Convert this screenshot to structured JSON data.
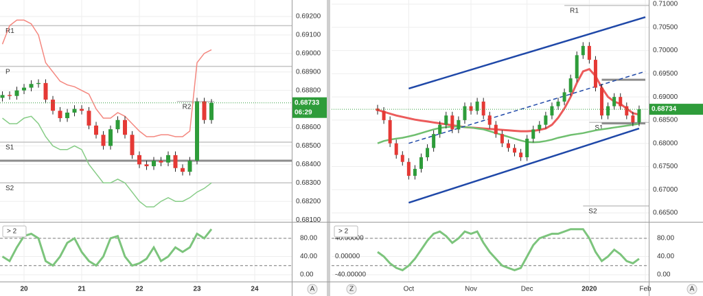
{
  "chart_data": [
    {
      "type": "candlestick",
      "x": [
        19.625,
        19.75,
        19.875,
        20,
        20.125,
        20.25,
        20.375,
        20.5,
        20.625,
        20.75,
        20.875,
        21,
        21.125,
        21.25,
        21.375,
        21.5,
        21.625,
        21.75,
        21.875,
        22,
        22.125,
        22.25,
        22.375,
        22.5,
        22.625,
        22.75,
        22.875,
        23,
        23.125,
        23.25
      ],
      "xlim": [
        19.583,
        24.643
      ],
      "xticks": [
        20,
        21,
        22,
        23,
        24
      ],
      "open": [
        0.6876,
        0.68775,
        0.6877,
        0.688,
        0.68815,
        0.68835,
        0.6884,
        0.6875,
        0.6869,
        0.6865,
        0.6868,
        0.687,
        0.6869,
        0.6861,
        0.6856,
        0.685,
        0.6859,
        0.6864,
        0.6856,
        0.6845,
        0.684,
        0.6839,
        0.6842,
        0.6841,
        0.6845,
        0.6838,
        0.6836,
        0.6842,
        0.6874,
        0.6864
      ],
      "high": [
        0.68795,
        0.68795,
        0.6882,
        0.68835,
        0.68855,
        0.6886,
        0.6886,
        0.6877,
        0.6871,
        0.687,
        0.6872,
        0.6872,
        0.6871,
        0.6863,
        0.6858,
        0.6861,
        0.6866,
        0.6866,
        0.6858,
        0.6847,
        0.6842,
        0.6844,
        0.6844,
        0.6847,
        0.6847,
        0.684,
        0.6844,
        0.6876,
        0.6876,
        0.68753
      ],
      "low": [
        0.6874,
        0.6875,
        0.6875,
        0.6878,
        0.68795,
        0.68815,
        0.6873,
        0.6867,
        0.6863,
        0.6863,
        0.6866,
        0.6867,
        0.6859,
        0.6854,
        0.6848,
        0.6848,
        0.6857,
        0.6854,
        0.6843,
        0.6838,
        0.6837,
        0.6837,
        0.6839,
        0.6839,
        0.6836,
        0.6834,
        0.6834,
        0.684,
        0.6862,
        0.6862
      ],
      "close": [
        0.68775,
        0.6877,
        0.688,
        0.68815,
        0.68835,
        0.6884,
        0.6875,
        0.6869,
        0.6865,
        0.6868,
        0.687,
        0.6869,
        0.6861,
        0.6856,
        0.685,
        0.6859,
        0.6864,
        0.6856,
        0.6845,
        0.684,
        0.6839,
        0.6842,
        0.6841,
        0.6845,
        0.6838,
        0.6836,
        0.6842,
        0.6874,
        0.6864,
        0.68733
      ],
      "up_color": "#2e9c3a",
      "down_color": "#e53935",
      "ylim": [
        0.68093,
        0.69289
      ],
      "yticks": [
        {
          "value": 0.681,
          "label": "0.68100"
        },
        {
          "value": 0.682,
          "label": "0.68200"
        },
        {
          "value": 0.683,
          "label": "0.68300"
        },
        {
          "value": 0.684,
          "label": "0.68400"
        },
        {
          "value": 0.685,
          "label": "0.68500"
        },
        {
          "value": 0.686,
          "label": "0.68600"
        },
        {
          "value": 0.687,
          "label": "0.68700"
        },
        {
          "value": 0.688,
          "label": "0.68800"
        },
        {
          "value": 0.689,
          "label": "0.68900"
        },
        {
          "value": 0.69,
          "label": "0.69000"
        },
        {
          "value": 0.691,
          "label": "0.69100"
        },
        {
          "value": 0.692,
          "label": "0.69200"
        }
      ],
      "lines": [
        {
          "color": "#f4877f",
          "values": [
            0.6905,
            0.6915,
            0.6918,
            0.6918,
            0.6916,
            0.691,
            0.6895,
            0.689,
            0.6885,
            0.6883,
            0.6882,
            0.688,
            0.6878,
            0.687,
            0.6865,
            0.6865,
            0.6868,
            0.6866,
            0.6862,
            0.6858,
            0.6855,
            0.6855,
            0.6856,
            0.6856,
            0.6855,
            0.6855,
            0.6858,
            0.6895,
            0.69,
            0.6902
          ]
        },
        {
          "color": "#86cc86",
          "values": [
            0.6865,
            0.6862,
            0.6862,
            0.6865,
            0.6866,
            0.6862,
            0.6855,
            0.685,
            0.6848,
            0.6848,
            0.685,
            0.6848,
            0.684,
            0.6835,
            0.683,
            0.683,
            0.6832,
            0.683,
            0.6825,
            0.682,
            0.6817,
            0.6817,
            0.682,
            0.6822,
            0.682,
            0.682,
            0.6822,
            0.6825,
            0.6827,
            0.683
          ]
        }
      ],
      "levels": [
        {
          "value": 0.6915,
          "x": [
            19.583,
            24.643
          ],
          "label": "R1"
        },
        {
          "value": 0.6893,
          "x": [
            19.583,
            24.643
          ],
          "label": "P"
        },
        {
          "value": 0.6852,
          "x": [
            19.583,
            24.643
          ],
          "label": "S1"
        },
        {
          "value": 0.683,
          "x": [
            19.583,
            24.643
          ],
          "label": "S2"
        },
        {
          "value": 0.6874,
          "x": [
            22.65,
            23.3
          ],
          "label": "R2"
        },
        {
          "value": 0.6842,
          "x": [
            19.583,
            24.643
          ],
          "thick": true
        }
      ],
      "price_label": {
        "value": 0.68733,
        "label": "0.68733"
      },
      "countdown": "06:29",
      "price_color": "#2e9c3a",
      "indicator_label": "> 2",
      "oscillator": {
        "ylim": [
          -15.1,
          113.2
        ],
        "yticks": [
          {
            "value": 80,
            "label": "80.00"
          },
          {
            "value": 40,
            "label": "40.00"
          },
          {
            "value": 0,
            "label": "0.00"
          }
        ],
        "levels": [
          80,
          20
        ],
        "series": [
          {
            "color": "#7cc47c",
            "values": [
              40,
              30,
              60,
              85,
              90,
              80,
              30,
              20,
              40,
              70,
              80,
              50,
              30,
              20,
              40,
              80,
              85,
              40,
              20,
              25,
              35,
              60,
              30,
              40,
              60,
              50,
              60,
              90,
              80,
              100
            ]
          }
        ]
      }
    },
    {
      "type": "candlestick",
      "categories": [
        null,
        null,
        null,
        null,
        null,
        "Oct",
        null,
        null,
        null,
        null,
        null,
        null,
        null,
        null,
        null,
        "Nov",
        null,
        null,
        null,
        null,
        null,
        null,
        null,
        null,
        "Dec",
        null,
        null,
        null,
        null,
        null,
        null,
        null,
        null,
        null,
        "2020",
        null,
        null,
        null,
        null,
        null,
        null,
        null,
        null,
        "Feb"
      ],
      "open": [
        0.6875,
        0.687,
        0.685,
        0.68,
        0.6775,
        0.676,
        0.673,
        0.6745,
        0.677,
        0.679,
        0.682,
        0.684,
        0.686,
        0.683,
        0.685,
        0.688,
        0.687,
        0.689,
        0.686,
        0.684,
        0.682,
        0.68,
        0.679,
        0.678,
        0.677,
        0.681,
        0.683,
        0.684,
        0.686,
        0.688,
        0.689,
        0.691,
        0.694,
        0.699,
        0.701,
        0.698,
        0.692,
        0.686,
        0.688,
        0.69,
        0.688,
        0.686,
        0.6845,
        null
      ],
      "high": [
        0.6883,
        0.6878,
        0.6858,
        0.6808,
        0.6783,
        0.6768,
        0.6753,
        0.6778,
        0.6798,
        0.6828,
        0.6848,
        0.6868,
        0.6868,
        0.6858,
        0.6888,
        0.6888,
        0.6898,
        0.6898,
        0.6868,
        0.6848,
        0.6828,
        0.6808,
        0.6798,
        0.6788,
        0.6818,
        0.6838,
        0.6848,
        0.6868,
        0.6888,
        0.6898,
        0.6918,
        0.6948,
        0.6998,
        0.7018,
        0.7018,
        0.6988,
        0.6928,
        0.6888,
        0.6908,
        0.6908,
        0.6888,
        0.6868,
        0.68814,
        null
      ],
      "low": [
        0.6862,
        0.6842,
        0.6792,
        0.6767,
        0.6752,
        0.6722,
        0.6722,
        0.6737,
        0.6762,
        0.6782,
        0.6812,
        0.6832,
        0.6822,
        0.6822,
        0.6842,
        0.6862,
        0.6862,
        0.6852,
        0.6832,
        0.6812,
        0.6792,
        0.6782,
        0.6772,
        0.6762,
        0.6762,
        0.6802,
        0.6822,
        0.6832,
        0.6852,
        0.6872,
        0.6882,
        0.6902,
        0.6932,
        0.6982,
        0.6972,
        0.6912,
        0.6852,
        0.6852,
        0.6872,
        0.6872,
        0.6852,
        0.6837,
        0.6837,
        null
      ],
      "close": [
        0.687,
        0.685,
        0.68,
        0.6775,
        0.676,
        0.673,
        0.6745,
        0.677,
        0.679,
        0.682,
        0.684,
        0.686,
        0.683,
        0.685,
        0.688,
        0.687,
        0.689,
        0.686,
        0.684,
        0.682,
        0.68,
        0.679,
        0.678,
        0.677,
        0.681,
        0.683,
        0.684,
        0.686,
        0.688,
        0.689,
        0.691,
        0.694,
        0.699,
        0.701,
        0.698,
        0.692,
        0.686,
        0.688,
        0.69,
        0.688,
        0.686,
        0.6845,
        0.68734,
        null
      ],
      "up_color": "#2e9c3a",
      "down_color": "#e53935",
      "ylim": [
        0.66323,
        0.71089
      ],
      "yticks": [
        {
          "value": 0.665,
          "label": "0.66500"
        },
        {
          "value": 0.67,
          "label": "0.67000"
        },
        {
          "value": 0.675,
          "label": "0.67500"
        },
        {
          "value": 0.68,
          "label": "0.68000"
        },
        {
          "value": 0.685,
          "label": "0.68500"
        },
        {
          "value": 0.69,
          "label": "0.69000"
        },
        {
          "value": 0.695,
          "label": "0.69500"
        },
        {
          "value": 0.7,
          "label": "0.70000"
        },
        {
          "value": 0.705,
          "label": "0.70500"
        },
        {
          "value": 0.71,
          "label": "0.71000"
        }
      ],
      "lines": [
        {
          "color": "#ec5b5b",
          "width": 3,
          "values": [
            0.6872,
            0.6868,
            0.6864,
            0.686,
            0.6857,
            0.6854,
            0.6851,
            0.6849,
            0.6847,
            0.6845,
            0.6843,
            0.6841,
            0.6839,
            0.6837,
            0.6835,
            0.6834,
            0.6833,
            0.6832,
            0.6831,
            0.683,
            0.6829,
            0.6828,
            0.6827,
            0.6826,
            0.6826,
            0.6827,
            0.6829,
            0.6832,
            0.684,
            0.6855,
            0.6875,
            0.69,
            0.693,
            0.6955,
            0.696,
            0.6945,
            0.692,
            0.69,
            0.689,
            0.6885,
            0.6875,
            0.6865,
            0.6862,
            null
          ]
        },
        {
          "color": "#6fbf6f",
          "width": 2.5,
          "values": [
            0.68,
            0.6805,
            0.6808,
            0.681,
            0.6812,
            0.6815,
            0.6818,
            0.6822,
            0.6826,
            0.683,
            0.6833,
            0.6835,
            0.6836,
            0.6836,
            0.6835,
            0.6834,
            0.6832,
            0.683,
            0.6826,
            0.6822,
            0.6818,
            0.6814,
            0.681,
            0.6806,
            0.6803,
            0.6802,
            0.6803,
            0.6805,
            0.6808,
            0.6812,
            0.6815,
            0.6818,
            0.682,
            0.6822,
            0.6825,
            0.6828,
            0.683,
            0.6832,
            0.6834,
            0.6836,
            0.6838,
            0.684,
            0.6842,
            null
          ]
        }
      ],
      "levels": [
        {
          "value": 0.7097,
          "x": [
            30,
            44
          ],
          "label": "R1"
        },
        {
          "value": 0.6845,
          "x": [
            34,
            44
          ],
          "label": "S1"
        },
        {
          "value": 0.6665,
          "x": [
            33,
            44
          ],
          "label": "S2"
        },
        {
          "value": 0.6937,
          "x": [
            36,
            43
          ],
          "thick": true
        },
        {
          "value": 0.6843,
          "x": [
            36,
            43
          ],
          "thick": true
        }
      ],
      "trendlines": [
        {
          "color": "#1f48a8",
          "x": [
            5,
            43
          ],
          "y": [
            0.6918,
            0.7072
          ]
        },
        {
          "color": "#1f48a8",
          "x": [
            5,
            42
          ],
          "y": [
            0.6672,
            0.6832
          ]
        },
        {
          "color": "#1f48a8",
          "dashed": true,
          "x": [
            5,
            43
          ],
          "y": [
            0.68,
            0.6955
          ]
        }
      ],
      "price_label": {
        "value": 0.68734,
        "label": "0.68734"
      },
      "price_color": "#2e9c3a",
      "indicator_label": "> 2",
      "oscillator": {
        "ylim": [
          -15.1,
          113.2
        ],
        "yticks": [
          {
            "value": 80,
            "label": "80.00"
          },
          {
            "value": 40,
            "label": "40.00"
          },
          {
            "value": 0,
            "label": "0.00"
          }
        ],
        "y2lim": [
          -55.1,
          73.2
        ],
        "y2ticks": [
          {
            "value": 40,
            "label": "40.00000"
          },
          {
            "value": 0,
            "label": "0.00000"
          },
          {
            "value": -40,
            "label": "-40.00000"
          }
        ],
        "levels": [
          80,
          20
        ],
        "series": [
          {
            "color": "#7cc47c",
            "values": [
              50,
              40,
              25,
              15,
              10,
              20,
              35,
              55,
              75,
              90,
              95,
              85,
              70,
              80,
              95,
              90,
              95,
              70,
              50,
              35,
              20,
              15,
              10,
              15,
              40,
              65,
              80,
              85,
              90,
              90,
              95,
              100,
              100,
              100,
              80,
              50,
              30,
              40,
              55,
              45,
              30,
              25,
              35,
              null
            ]
          }
        ]
      }
    }
  ],
  "controls": {
    "zoom": "Z",
    "auto_left": "A",
    "auto_right": "A"
  }
}
